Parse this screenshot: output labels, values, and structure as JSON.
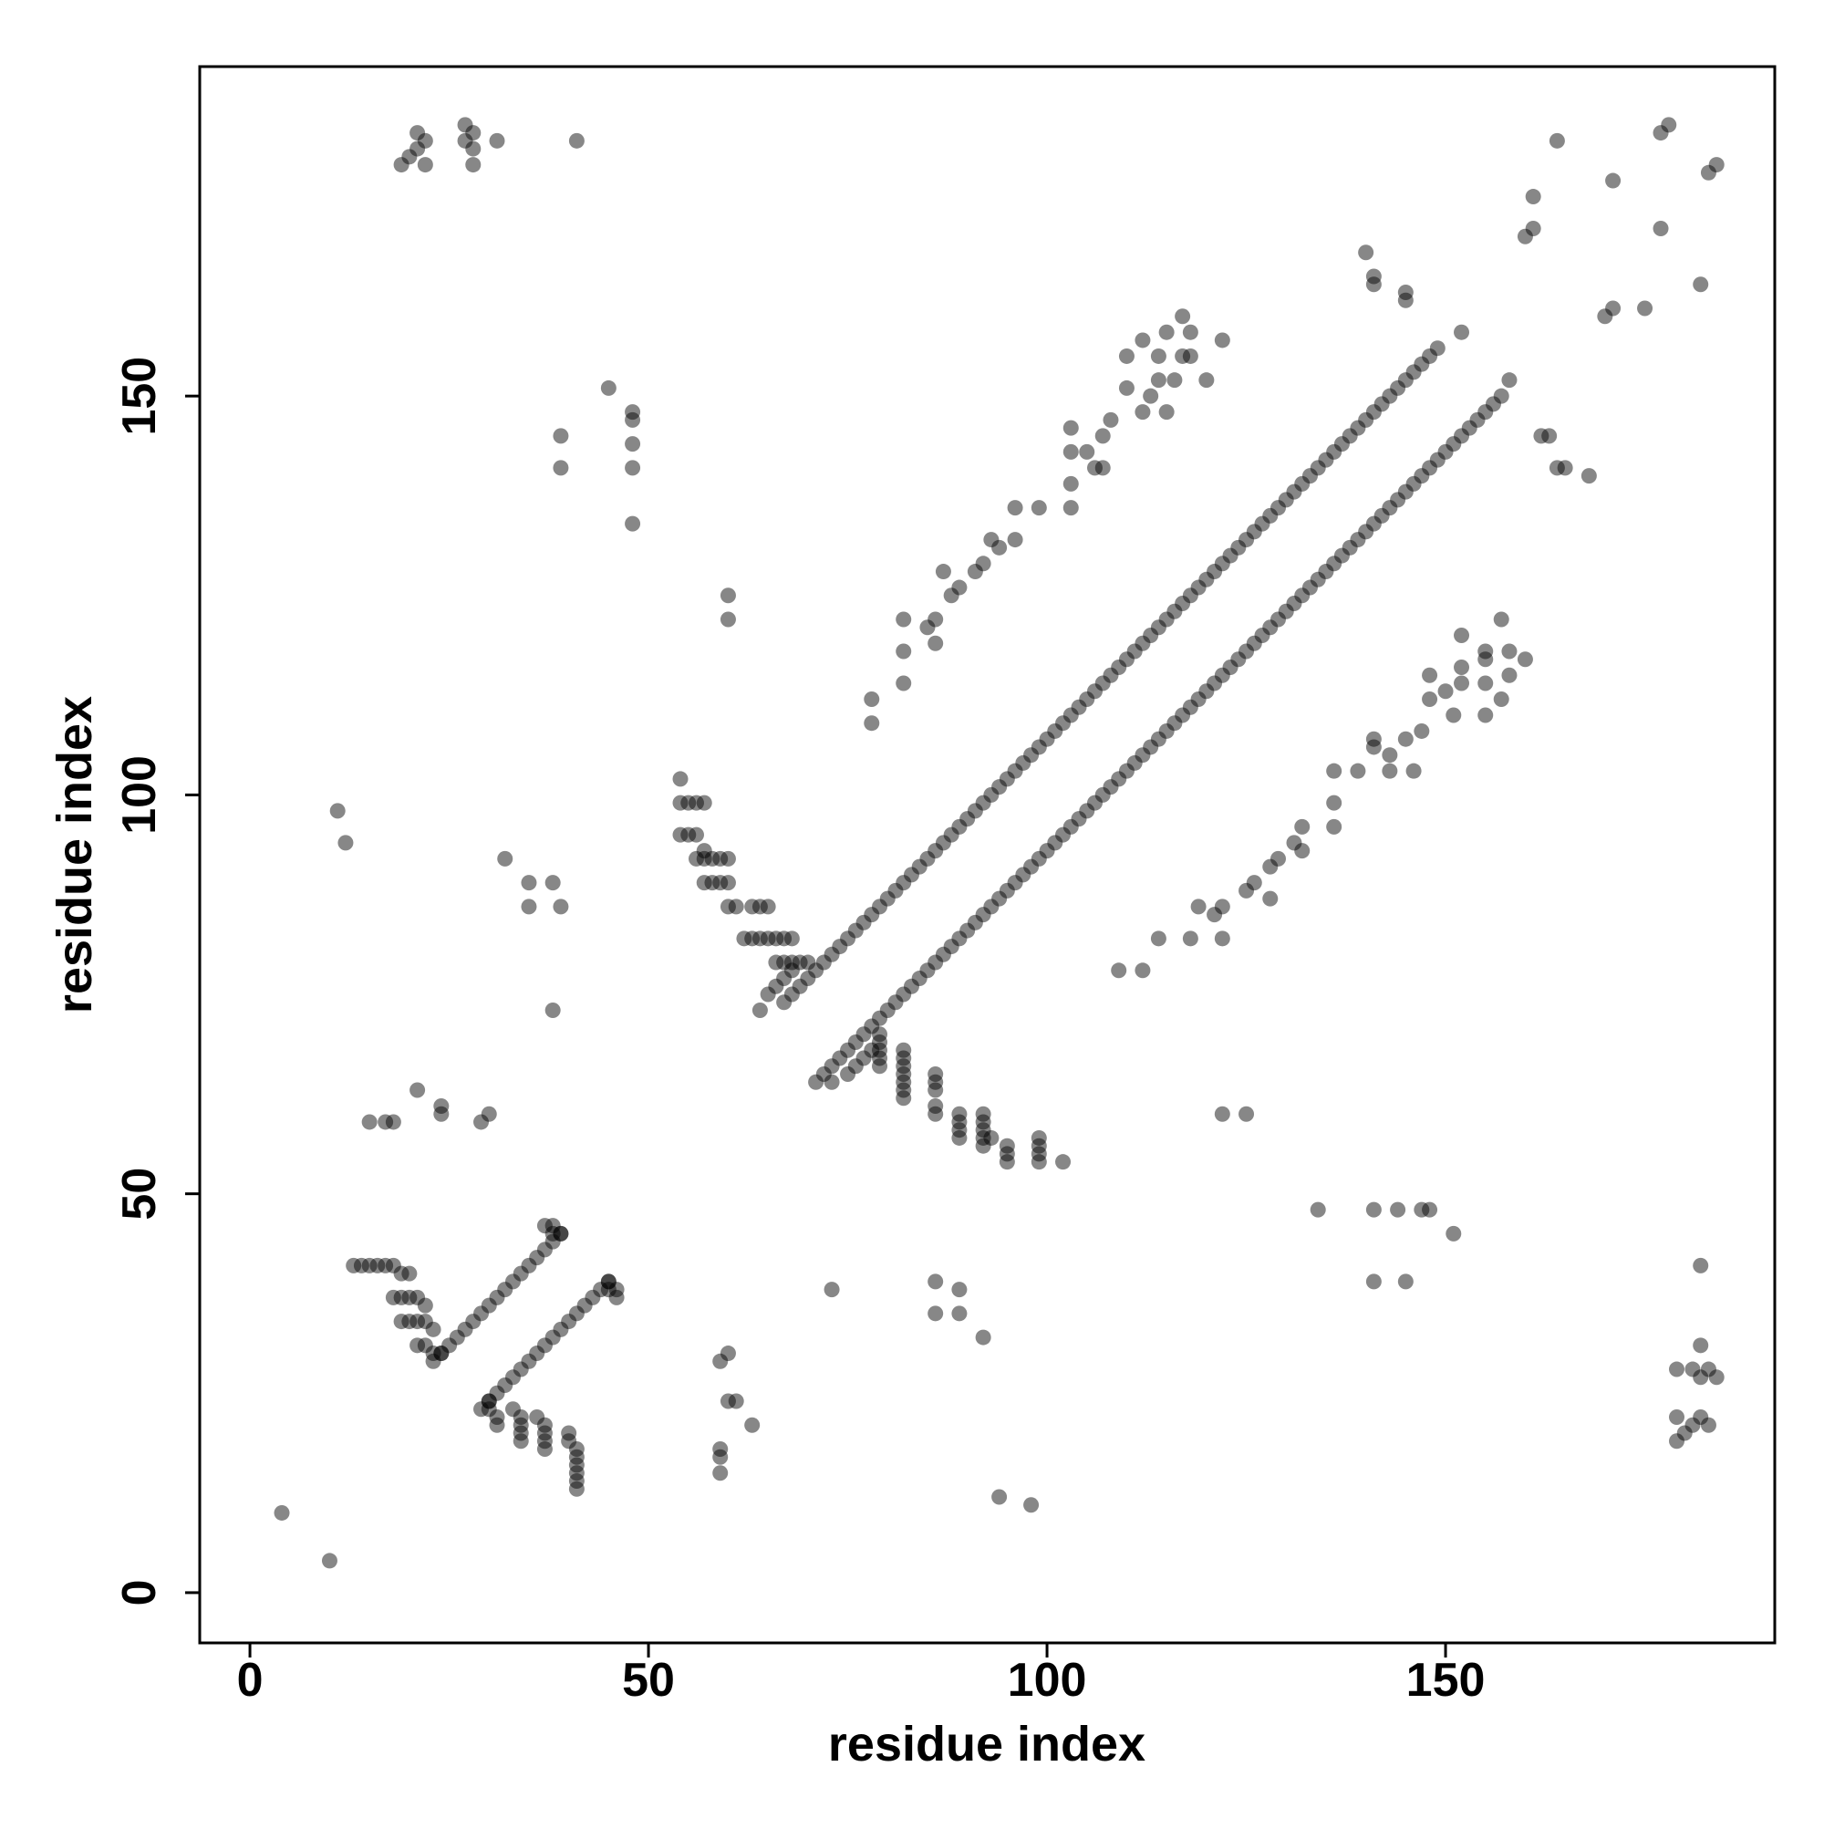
{
  "chart_data": {
    "type": "scatter",
    "xlabel": "residue index",
    "ylabel": "residue index",
    "xlim": [
      -6.3,
      191.3
    ],
    "ylim": [
      -6.3,
      191.3
    ],
    "xticks": [
      0,
      50,
      100,
      150
    ],
    "yticks": [
      0,
      50,
      100,
      150
    ],
    "color": "#000000",
    "alpha": 0.47,
    "x": [
      54,
      54,
      55,
      56,
      57,
      54,
      55,
      56,
      57,
      56,
      57,
      58,
      59,
      60,
      57,
      58,
      59,
      60,
      60,
      61,
      63,
      64,
      65,
      62,
      63,
      64,
      65,
      66,
      67,
      68,
      66,
      67,
      68,
      69,
      70,
      65,
      66,
      67,
      68,
      64,
      13,
      14,
      15,
      16,
      17,
      18,
      19,
      20,
      18,
      19,
      20,
      21,
      22,
      19,
      20,
      21,
      22,
      23,
      21,
      22,
      23,
      24,
      37,
      38,
      38,
      39,
      78,
      78,
      82,
      82,
      82,
      85,
      86,
      86,
      87,
      88,
      89,
      91,
      92,
      93,
      94,
      96,
      96,
      99,
      103,
      103,
      103,
      103,
      105,
      106,
      107,
      107,
      108,
      110,
      110,
      112,
      112,
      113,
      114,
      114,
      115,
      115,
      116,
      117,
      117,
      118,
      118,
      120,
      122,
      19,
      20,
      21,
      21,
      22,
      22,
      27,
      27,
      28,
      28,
      28,
      31,
      41,
      39,
      39,
      45,
      48,
      48,
      48,
      48,
      48,
      60,
      60,
      11,
      12,
      32,
      35,
      38,
      35,
      39,
      38,
      21,
      24,
      24,
      29,
      30,
      15,
      17,
      18,
      4,
      140,
      141,
      141,
      145,
      145,
      152,
      102,
      99,
      99,
      99,
      99,
      95,
      95,
      95,
      93,
      92,
      92,
      92,
      92,
      92,
      89,
      89,
      89,
      89,
      86,
      86,
      86,
      86,
      86,
      82,
      82,
      82,
      82,
      82,
      82,
      82,
      79,
      79,
      79,
      79,
      79,
      75,
      76,
      77,
      78,
      73,
      41,
      41,
      41,
      41,
      41,
      41,
      40,
      40,
      37,
      37,
      37,
      37,
      36,
      34,
      34,
      34,
      34,
      33,
      31,
      31,
      30,
      30,
      46,
      46,
      45,
      45,
      112,
      109,
      122,
      118,
      114,
      121,
      122,
      119,
      128,
      125,
      126,
      128,
      129,
      132,
      131,
      132,
      136,
      136,
      136,
      139,
      143,
      146,
      143,
      141,
      141,
      145,
      147,
      151,
      155,
      148,
      157,
      150,
      152,
      155,
      148,
      158,
      152,
      160,
      155,
      158,
      155,
      152,
      157,
      179,
      180,
      181,
      183,
      182,
      179,
      184,
      182,
      183,
      181,
      179,
      182,
      182,
      145,
      141,
      151,
      148,
      147,
      144,
      141,
      134,
      125,
      122,
      98,
      94,
      92,
      89,
      89,
      86,
      86,
      73,
      63,
      61,
      60,
      59,
      60,
      59,
      59,
      59,
      10,
      168,
      165,
      164,
      163,
      162,
      158,
      164,
      178,
      177,
      183,
      184,
      171,
      177,
      161,
      160,
      161,
      182,
      170,
      171,
      175,
      67,
      68,
      69,
      70,
      71,
      72,
      73,
      74,
      75,
      76,
      77,
      78,
      79,
      80,
      81,
      82,
      83,
      84,
      85,
      86,
      87,
      88,
      89,
      90,
      91,
      92,
      93,
      94,
      95,
      96,
      97,
      98,
      99,
      100,
      101,
      102,
      103,
      104,
      105,
      106,
      107,
      108,
      109,
      110,
      111,
      112,
      113,
      114,
      115,
      116,
      117,
      118,
      119,
      120,
      121,
      122,
      123,
      124,
      125,
      126,
      127,
      128,
      129,
      130,
      131,
      132,
      133,
      134,
      135,
      136,
      137,
      138,
      139,
      140,
      141,
      142,
      143,
      144,
      145,
      146,
      147,
      148,
      149,
      71,
      72,
      73,
      74,
      75,
      76,
      77,
      78,
      79,
      80,
      81,
      82,
      83,
      84,
      85,
      86,
      87,
      88,
      89,
      90,
      91,
      92,
      93,
      94,
      95,
      96,
      97,
      98,
      99,
      100,
      101,
      102,
      103,
      104,
      105,
      106,
      107,
      108,
      109,
      110,
      111,
      112,
      113,
      114,
      115,
      116,
      117,
      118,
      119,
      120,
      121,
      122,
      123,
      124,
      125,
      126,
      127,
      128,
      129,
      130,
      131,
      132,
      133,
      134,
      135,
      136,
      137,
      138,
      139,
      140,
      141,
      142,
      143,
      144,
      145,
      146,
      147,
      148,
      149,
      150,
      151,
      152,
      153,
      154,
      155,
      156,
      157,
      23,
      24,
      25,
      26,
      27,
      28,
      29,
      30,
      31,
      32,
      33,
      34,
      35,
      36,
      37,
      38,
      39,
      29,
      30,
      31,
      32,
      33,
      34,
      35,
      36,
      37,
      38,
      39,
      40,
      41,
      42,
      43,
      44,
      45
    ],
    "values": [
      102,
      99,
      99,
      99,
      99,
      95,
      95,
      95,
      93,
      92,
      92,
      92,
      92,
      92,
      89,
      89,
      89,
      89,
      86,
      86,
      86,
      86,
      86,
      82,
      82,
      82,
      82,
      82,
      82,
      82,
      79,
      79,
      79,
      79,
      79,
      75,
      76,
      77,
      78,
      73,
      41,
      41,
      41,
      41,
      41,
      41,
      40,
      40,
      37,
      37,
      37,
      37,
      36,
      34,
      34,
      34,
      34,
      33,
      31,
      31,
      30,
      30,
      46,
      46,
      45,
      45,
      112,
      109,
      122,
      118,
      114,
      121,
      122,
      119,
      128,
      125,
      126,
      128,
      129,
      132,
      131,
      132,
      136,
      136,
      136,
      139,
      143,
      146,
      143,
      141,
      141,
      145,
      147,
      151,
      155,
      148,
      157,
      150,
      152,
      155,
      148,
      158,
      152,
      160,
      155,
      158,
      155,
      152,
      157,
      179,
      180,
      181,
      183,
      182,
      179,
      184,
      182,
      183,
      181,
      179,
      182,
      182,
      145,
      141,
      151,
      148,
      147,
      144,
      141,
      134,
      125,
      122,
      98,
      94,
      92,
      89,
      89,
      86,
      86,
      73,
      63,
      61,
      60,
      59,
      60,
      59,
      59,
      59,
      10,
      168,
      165,
      164,
      163,
      162,
      158,
      54,
      54,
      55,
      56,
      57,
      54,
      55,
      56,
      57,
      56,
      57,
      58,
      59,
      60,
      57,
      58,
      59,
      60,
      60,
      61,
      63,
      64,
      65,
      62,
      63,
      64,
      65,
      66,
      67,
      68,
      66,
      67,
      68,
      69,
      70,
      65,
      66,
      67,
      68,
      64,
      13,
      14,
      15,
      16,
      17,
      18,
      19,
      20,
      18,
      19,
      20,
      21,
      22,
      19,
      20,
      21,
      22,
      23,
      21,
      22,
      23,
      24,
      37,
      38,
      38,
      39,
      78,
      78,
      82,
      82,
      82,
      85,
      86,
      86,
      87,
      88,
      89,
      91,
      92,
      93,
      94,
      96,
      96,
      99,
      103,
      103,
      103,
      103,
      105,
      106,
      107,
      107,
      108,
      110,
      110,
      112,
      112,
      113,
      114,
      114,
      115,
      115,
      116,
      117,
      117,
      118,
      118,
      120,
      122,
      19,
      20,
      21,
      21,
      22,
      22,
      27,
      27,
      28,
      28,
      28,
      31,
      41,
      39,
      39,
      45,
      48,
      48,
      48,
      48,
      48,
      60,
      60,
      11,
      12,
      32,
      35,
      38,
      35,
      39,
      38,
      21,
      24,
      24,
      29,
      30,
      15,
      17,
      18,
      4,
      140,
      141,
      141,
      145,
      145,
      152,
      182,
      184,
      183,
      178,
      179,
      177,
      171,
      175,
      170,
      171,
      164,
      160,
      161,
      161,
      74,
      75,
      76,
      77,
      78,
      79,
      80,
      81,
      82,
      83,
      84,
      85,
      86,
      87,
      88,
      89,
      90,
      91,
      92,
      93,
      94,
      95,
      96,
      97,
      98,
      99,
      100,
      101,
      102,
      103,
      104,
      105,
      106,
      107,
      108,
      109,
      110,
      111,
      112,
      113,
      114,
      115,
      116,
      117,
      118,
      119,
      120,
      121,
      122,
      123,
      124,
      125,
      126,
      127,
      128,
      129,
      130,
      131,
      132,
      133,
      134,
      135,
      136,
      137,
      138,
      139,
      140,
      141,
      142,
      143,
      144,
      145,
      146,
      147,
      148,
      149,
      150,
      151,
      152,
      153,
      154,
      155,
      156,
      64,
      65,
      66,
      67,
      68,
      69,
      70,
      71,
      72,
      73,
      74,
      75,
      76,
      77,
      78,
      79,
      80,
      81,
      82,
      83,
      84,
      85,
      86,
      87,
      88,
      89,
      90,
      91,
      92,
      93,
      94,
      95,
      96,
      97,
      98,
      99,
      100,
      101,
      102,
      103,
      104,
      105,
      106,
      107,
      108,
      109,
      110,
      111,
      112,
      113,
      114,
      115,
      116,
      117,
      118,
      119,
      120,
      121,
      122,
      123,
      124,
      125,
      126,
      127,
      128,
      129,
      130,
      131,
      132,
      133,
      134,
      135,
      136,
      137,
      138,
      139,
      140,
      141,
      142,
      143,
      144,
      145,
      146,
      147,
      148,
      149,
      150,
      29,
      30,
      31,
      32,
      33,
      34,
      35,
      36,
      37,
      38,
      39,
      40,
      41,
      42,
      43,
      44,
      45,
      23,
      24,
      25,
      26,
      27,
      28,
      29,
      30,
      31,
      32,
      33,
      34,
      35,
      36,
      37,
      38,
      39
    ]
  }
}
